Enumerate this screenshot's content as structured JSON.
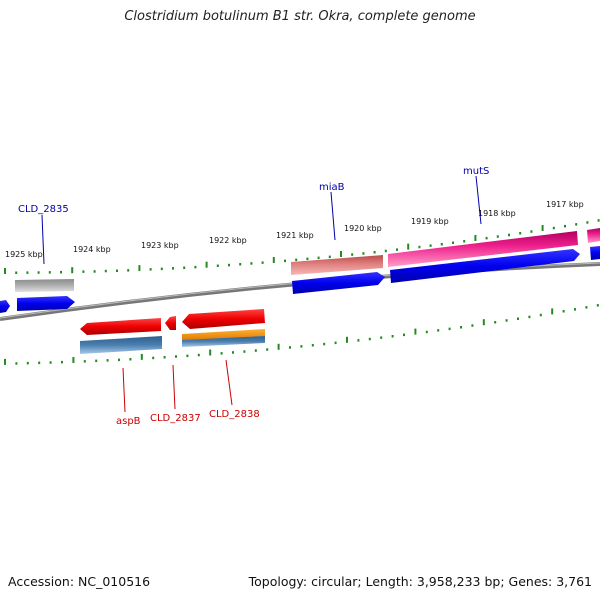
{
  "title": "Clostridium botulinum B1 str. Okra, complete genome",
  "footer": {
    "accession": "Accession: NC_010516",
    "summary": "Topology: circular; Length: 3,958,233 bp; Genes: 3,761"
  },
  "scale_labels": [
    "1925 kbp",
    "1924 kbp",
    "1923 kbp",
    "1922 kbp",
    "1921 kbp",
    "1920 kbp",
    "1919 kbp",
    "1918 kbp",
    "1917 kbp"
  ],
  "gene_labels": {
    "upper": [
      "CLD_2835",
      "miaB",
      "mutS"
    ],
    "lower": [
      "aspB",
      "CLD_2837",
      "CLD_2838"
    ]
  },
  "colors": {
    "cds_blue": "#0000ee",
    "cds_red": "#ee0000",
    "steel_blue": "#4a7fb0",
    "orange": "#ff9900",
    "gray": "#aaaaaa",
    "salmon": "#e08080",
    "pink": "#ee1e8c",
    "tick_green": "#228b22",
    "label_blue": "#0000aa",
    "label_red": "#cc0000",
    "backbone": "#777777"
  }
}
